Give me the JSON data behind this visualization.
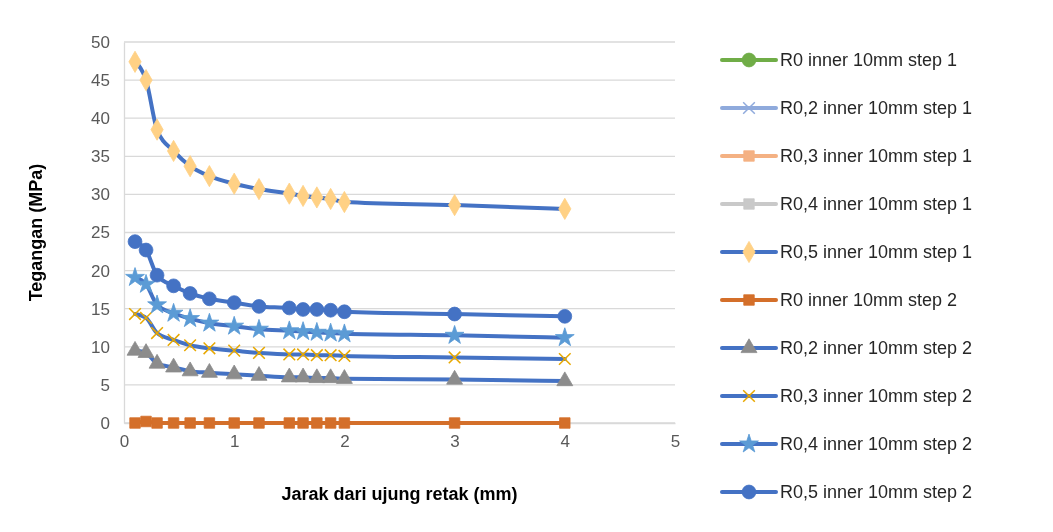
{
  "chart_data": {
    "type": "line",
    "xlabel": "Jarak dari ujung retak (mm)",
    "ylabel": "Tegangan (MPa)",
    "x": [
      0.1,
      0.2,
      0.3,
      0.45,
      0.6,
      0.775,
      1,
      1.225,
      1.5,
      1.625,
      1.75,
      1.875,
      2,
      3,
      4
    ],
    "xlim": [
      0,
      5
    ],
    "xticks": [
      0,
      1,
      2,
      3,
      4,
      5
    ],
    "ylim": [
      0,
      50
    ],
    "yticks": [
      0,
      5,
      10,
      15,
      20,
      25,
      30,
      35,
      40,
      45,
      50
    ],
    "grid": "y",
    "legend": "right",
    "series": [
      {
        "name": "R0 inner 10mm step 1",
        "color": "#70ad47",
        "marker": "circle",
        "values": [
          null,
          null,
          null,
          null,
          null,
          null,
          null,
          null,
          null,
          null,
          null,
          null,
          null,
          null,
          null
        ]
      },
      {
        "name": "R0,2 inner 10mm step 1",
        "color": "#8faadc",
        "marker": "cross",
        "values": [
          null,
          null,
          null,
          null,
          null,
          null,
          null,
          null,
          null,
          null,
          null,
          null,
          null,
          null,
          null
        ]
      },
      {
        "name": "R0,3 inner 10mm step 1",
        "color": "#f4b183",
        "marker": "square",
        "values": [
          null,
          null,
          null,
          null,
          null,
          null,
          null,
          null,
          null,
          null,
          null,
          null,
          null,
          null,
          null
        ]
      },
      {
        "name": "R0,4 inner 10mm step 1",
        "color": "#c9c9c9",
        "marker": "square",
        "values": [
          null,
          null,
          null,
          null,
          null,
          null,
          null,
          null,
          null,
          null,
          null,
          null,
          null,
          null,
          null
        ]
      },
      {
        "name": "R0,5 inner 10mm step 1",
        "color": "#4472c4",
        "marker": "diamond",
        "colors": [
          "#ffd185",
          "#ffd185",
          "#ffd185",
          "#ffd185",
          "#ffd185",
          "#ffd185",
          "#ffd185",
          "#ffd185",
          "#ffd185",
          "#ffd185",
          "#ffd185",
          "#ffd185",
          "#ffd185",
          "#ffd185",
          "#ffd185"
        ],
        "values": [
          47.4,
          45,
          38.5,
          35.7,
          33.7,
          32.4,
          31.4,
          30.7,
          30.1,
          29.8,
          29.6,
          29.4,
          29.0,
          28.6,
          28.1
        ]
      },
      {
        "name": "R0 inner 10mm step 2",
        "color": "#d46f2a",
        "marker": "square",
        "colors": [
          "#d46f2a",
          "#d46f2a",
          "#d46f2a",
          "#d46f2a",
          "#d46f2a",
          "#d46f2a",
          "#d46f2a",
          "#d46f2a",
          "#d46f2a",
          "#d46f2a",
          "#d46f2a",
          "#d46f2a",
          "#d46f2a",
          "#d46f2a",
          "#d46f2a"
        ],
        "values": [
          0,
          0.2,
          0,
          0,
          0,
          0,
          0,
          0,
          0,
          0,
          0,
          0,
          0,
          0,
          0
        ]
      },
      {
        "name": "R0,2 inner 10mm step 2",
        "color": "#4472c4",
        "marker": "triangle",
        "colors": [
          "#8c8c8c",
          "#8c8c8c",
          "#8c8c8c",
          "#8c8c8c",
          "#8c8c8c",
          "#8c8c8c",
          "#8c8c8c",
          "#8c8c8c",
          "#8c8c8c",
          "#8c8c8c",
          "#8c8c8c",
          "#8c8c8c",
          "#8c8c8c",
          "#8c8c8c",
          "#8c8c8c"
        ],
        "values": [
          9.5,
          9.2,
          7.8,
          7.3,
          6.8,
          6.6,
          6.4,
          6.2,
          6.0,
          6.0,
          5.9,
          5.9,
          5.8,
          5.7,
          5.5
        ]
      },
      {
        "name": "R0,3 inner 10mm step 2",
        "color": "#4472c4",
        "marker": "cross",
        "colors": [
          "#e8a800",
          "#e8a800",
          "#e8a800",
          "#e8a800",
          "#e8a800",
          "#e8a800",
          "#e8a800",
          "#e8a800",
          "#e8a800",
          "#e8a800",
          "#e8a800",
          "#e8a800",
          "#e8a800",
          "#e8a800",
          "#e8a800"
        ],
        "values": [
          14.3,
          13.8,
          11.8,
          10.9,
          10.2,
          9.8,
          9.5,
          9.2,
          9.0,
          9.0,
          8.9,
          8.9,
          8.8,
          8.6,
          8.4
        ]
      },
      {
        "name": "R0,4 inner 10mm step 2",
        "color": "#4472c4",
        "marker": "star",
        "colors": [
          "#5b9bd5",
          "#5b9bd5",
          "#5b9bd5",
          "#5b9bd5",
          "#5b9bd5",
          "#5b9bd5",
          "#5b9bd5",
          "#5b9bd5",
          "#5b9bd5",
          "#5b9bd5",
          "#5b9bd5",
          "#5b9bd5",
          "#5b9bd5",
          "#5b9bd5",
          "#5b9bd5"
        ],
        "values": [
          19.1,
          18.2,
          15.5,
          14.4,
          13.7,
          13.1,
          12.7,
          12.3,
          12.1,
          12.0,
          11.9,
          11.8,
          11.7,
          11.5,
          11.2
        ]
      },
      {
        "name": "R0,5 inner 10mm step 2",
        "color": "#4472c4",
        "marker": "circle",
        "colors": [
          "#4472c4",
          "#4472c4",
          "#4472c4",
          "#4472c4",
          "#4472c4",
          "#4472c4",
          "#4472c4",
          "#4472c4",
          "#4472c4",
          "#4472c4",
          "#4472c4",
          "#4472c4",
          "#4472c4",
          "#4472c4",
          "#4472c4"
        ],
        "values": [
          23.8,
          22.7,
          19.4,
          18.0,
          17.0,
          16.3,
          15.8,
          15.3,
          15.1,
          14.9,
          14.9,
          14.8,
          14.6,
          14.3,
          14.0
        ]
      }
    ]
  }
}
